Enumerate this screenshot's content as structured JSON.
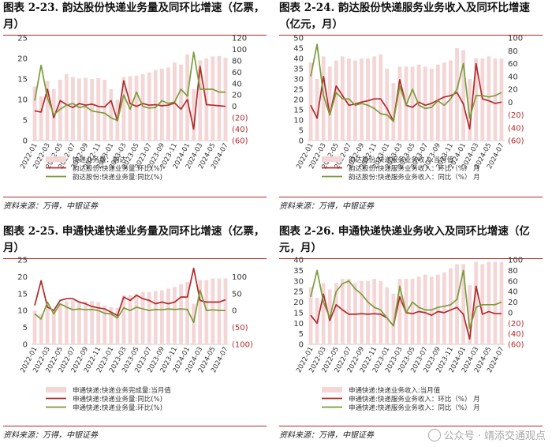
{
  "colors": {
    "bar": "#f4d6d6",
    "red": "#b22a2a",
    "green": "#7a9c3a",
    "rule": "#b22a2a"
  },
  "watermark": {
    "text": "公众号 · 靖添交通观点"
  },
  "chart_data": [
    {
      "id": "p1",
      "type": "bar+line",
      "title": "图表 2-23. 韵达股份快递业务量及同环比增速（亿票，月）",
      "source": "资料来源：万得，中银证券",
      "categories": [
        "2022-01",
        "2022-02",
        "2022-03",
        "2022-04",
        "2022-05",
        "2022-06",
        "2022-07",
        "2022-08",
        "2022-09",
        "2022-10",
        "2022-11",
        "2022-12",
        "2023-01",
        "2023-02",
        "2023-03",
        "2023-04",
        "2023-05",
        "2023-06",
        "2023-07",
        "2023-08",
        "2023-09",
        "2023-10",
        "2023-11",
        "2023-12",
        "2024-01",
        "2024-02",
        "2024-03",
        "2024-04",
        "2024-05",
        "2024-06",
        "2024-07"
      ],
      "xtick_labels": [
        "2022-01",
        "2022-03",
        "2022-05",
        "2022-07",
        "2022-09",
        "2022-11",
        "2023-01",
        "2023-03",
        "2023-05",
        "2023-07",
        "2023-09",
        "2023-11",
        "2024-01",
        "2024-03",
        "2024-05",
        "2024-07"
      ],
      "left_axis": {
        "min": 0,
        "max": 25,
        "ticks": [
          "0",
          "5",
          "10",
          "15",
          "20",
          "25"
        ]
      },
      "right_axis": {
        "min": -60,
        "max": 120,
        "ticks": [
          "(60)",
          "(40)",
          "(20)",
          "0",
          "20",
          "40",
          "60",
          "80",
          "100",
          "120"
        ]
      },
      "bars": {
        "name": "快递业务量：韵达",
        "values": [
          13.2,
          10.8,
          14.5,
          12.5,
          14.8,
          16.2,
          15.5,
          15.1,
          15.3,
          15.0,
          15.2,
          14.8,
          12.5,
          10.0,
          15.5,
          15.7,
          15.8,
          16.2,
          16.6,
          17.2,
          17.5,
          17.8,
          19.0,
          18.5,
          21.0,
          12.5,
          19.5,
          20.0,
          20.5,
          20.6,
          20.2
        ]
      },
      "lines": [
        {
          "name": "韵达股份:快递业务量:环比(%)",
          "color": "red",
          "values": [
            -8,
            -10,
            30,
            -20,
            10,
            3,
            -2,
            5,
            2,
            4,
            0,
            -1,
            10,
            -25,
            45,
            5,
            0,
            5,
            2,
            3,
            1,
            2,
            6,
            -5,
            12,
            -40,
            70,
            3,
            2,
            1,
            0
          ]
        },
        {
          "name": "韵达股份:快递业务量:同比(%)",
          "color": "green",
          "values": [
            10,
            72,
            15,
            -15,
            -5,
            2,
            5,
            -2,
            0,
            -8,
            -10,
            -12,
            -20,
            -25,
            20,
            -5,
            25,
            0,
            -3,
            -2,
            10,
            5,
            8,
            30,
            18,
            95,
            30,
            30,
            30,
            25,
            25
          ]
        }
      ]
    },
    {
      "id": "p2",
      "type": "bar+line",
      "title": "图表 2-24. 韵达股份快递服务业务收入及同环比增速（亿元，月）",
      "source": "资料来源：万得，中银证券",
      "categories": [
        "2022-01",
        "2022-02",
        "2022-03",
        "2022-04",
        "2022-05",
        "2022-06",
        "2022-07",
        "2022-08",
        "2022-09",
        "2022-10",
        "2022-11",
        "2022-12",
        "2023-01",
        "2023-02",
        "2023-03",
        "2023-04",
        "2023-05",
        "2023-06",
        "2023-07",
        "2023-08",
        "2023-09",
        "2023-10",
        "2023-11",
        "2023-12",
        "2024-01",
        "2024-02",
        "2024-03",
        "2024-04",
        "2024-05",
        "2024-06",
        "2024-07"
      ],
      "xtick_labels": [
        "2022-01",
        "2022-03",
        "2022-05",
        "2022-07",
        "2022-09",
        "2022-11",
        "2023-01",
        "2023-03",
        "2023-05",
        "2023-07",
        "2023-09",
        "2023-11",
        "2024-01",
        "2024-03",
        "2024-05",
        "2024-07"
      ],
      "left_axis": {
        "min": 0,
        "max": 50,
        "ticks": [
          "0",
          "5",
          "10",
          "15",
          "20",
          "25",
          "30",
          "35",
          "40",
          "45",
          "50"
        ]
      },
      "right_axis": {
        "min": -60,
        "max": 100,
        "ticks": [
          "(60)",
          "(40)",
          "(20)",
          "0",
          "20",
          "40",
          "60",
          "80",
          "100"
        ]
      },
      "bars": {
        "name": "韵达股份:快递服务业务收入:当月值",
        "values": [
          38,
          30,
          41,
          36,
          39,
          41,
          40,
          39,
          40,
          40,
          41,
          42,
          35,
          28,
          36,
          36,
          36,
          37,
          36,
          35,
          37,
          38,
          39,
          45,
          44,
          30,
          40,
          40,
          41,
          40,
          40
        ]
      },
      "lines": [
        {
          "name": "韵达股份:快递服务业务收入：环比（%）  月",
          "color": "red",
          "values": [
            -5,
            -25,
            40,
            -20,
            25,
            10,
            -5,
            -3,
            0,
            2,
            5,
            5,
            -10,
            -30,
            35,
            -5,
            -8,
            0,
            -5,
            -2,
            3,
            8,
            10,
            15,
            -3,
            -42,
            60,
            5,
            2,
            -2,
            0
          ]
        },
        {
          "name": "韵达股份:快递服务业务收入：同比（%）  月",
          "color": "green",
          "values": [
            40,
            90,
            10,
            -20,
            15,
            5,
            5,
            -5,
            -2,
            -5,
            -10,
            -18,
            -20,
            -30,
            25,
            -5,
            20,
            -5,
            -10,
            -8,
            2,
            -5,
            5,
            20,
            60,
            -25,
            10,
            10,
            8,
            10,
            15
          ]
        }
      ]
    },
    {
      "id": "p3",
      "type": "bar+line",
      "title": "图表 2-25. 申通快递快递业务量及同环比增速（亿票，月）",
      "source": "资料来源：万得，中银证券",
      "categories": [
        "2022-01",
        "2022-02",
        "2022-03",
        "2022-04",
        "2022-05",
        "2022-06",
        "2022-07",
        "2022-08",
        "2022-09",
        "2022-10",
        "2022-11",
        "2022-12",
        "2023-01",
        "2023-02",
        "2023-03",
        "2023-04",
        "2023-05",
        "2023-06",
        "2023-07",
        "2023-08",
        "2023-09",
        "2023-10",
        "2023-11",
        "2023-12",
        "2024-01",
        "2024-02",
        "2024-03",
        "2024-04",
        "2024-05",
        "2024-06",
        "2024-07"
      ],
      "xtick_labels": [
        "2022-01",
        "2022-03",
        "2022-05",
        "2022-07",
        "2022-09",
        "2022-11",
        "2023-01",
        "2023-03",
        "2023-05",
        "2023-07",
        "2023-09",
        "2023-11",
        "2024-01",
        "2024-03",
        "2024-05",
        "2024-07"
      ],
      "left_axis": {
        "min": 0,
        "max": 25,
        "ticks": [
          "0",
          "5",
          "10",
          "15",
          "20",
          "25"
        ]
      },
      "right_axis": {
        "min": -100,
        "max": 150,
        "ticks": [
          "(100)",
          "(50)",
          "0",
          "50",
          "100"
        ]
      },
      "bars": {
        "name": "申通快递:快递业务完成量:当月值",
        "values": [
          10,
          9,
          11.5,
          10,
          11.8,
          12.8,
          13,
          12.5,
          12.7,
          12.8,
          12.5,
          11.5,
          11,
          10.8,
          14.5,
          14.5,
          15,
          15.5,
          15.5,
          15.8,
          16,
          16.5,
          17,
          17.8,
          18.5,
          12,
          19,
          19,
          19.5,
          19.5,
          19.5
        ]
      },
      "lines": [
        {
          "name": "申通快递:快递业务量:同比(%)",
          "color": "red",
          "values": [
            15,
            88,
            10,
            0,
            30,
            35,
            35,
            25,
            20,
            12,
            8,
            5,
            -5,
            -15,
            40,
            30,
            45,
            35,
            30,
            20,
            25,
            20,
            25,
            40,
            40,
            125,
            30,
            25,
            25,
            25,
            32
          ]
        },
        {
          "name": "申通快递:快递业务量:环比(%)",
          "color": "green",
          "values": [
            -10,
            -25,
            25,
            -10,
            20,
            10,
            2,
            5,
            2,
            3,
            0,
            -8,
            -10,
            -22,
            8,
            0,
            10,
            5,
            0,
            3,
            2,
            5,
            3,
            5,
            3,
            -35,
            60,
            0,
            2,
            0,
            0
          ]
        }
      ]
    },
    {
      "id": "p4",
      "type": "bar+line",
      "title": "图表 2-26. 申通快递快递业务收入及同环比增速（亿元，月）",
      "source": "资料来源：万得，中银证券",
      "categories": [
        "2022-01",
        "2022-02",
        "2022-03",
        "2022-04",
        "2022-05",
        "2022-06",
        "2022-07",
        "2022-08",
        "2022-09",
        "2022-10",
        "2022-11",
        "2022-12",
        "2023-01",
        "2023-02",
        "2023-03",
        "2023-04",
        "2023-05",
        "2023-06",
        "2023-07",
        "2023-08",
        "2023-09",
        "2023-10",
        "2023-11",
        "2023-12",
        "2024-01",
        "2024-02",
        "2024-03",
        "2024-04",
        "2024-05",
        "2024-06",
        "2024-07"
      ],
      "xtick_labels": [
        "2022-01",
        "2022-03",
        "2022-05",
        "2022-07",
        "2022-09",
        "2022-11",
        "2023-01",
        "2023-03",
        "2023-05",
        "2023-07",
        "2023-09",
        "2023-11",
        "2024-01",
        "2024-03",
        "2024-05",
        "2024-07"
      ],
      "left_axis": {
        "min": 0,
        "max": 40,
        "ticks": [
          "0",
          "5",
          "10",
          "15",
          "20",
          "25",
          "30",
          "35",
          "40"
        ]
      },
      "right_axis": {
        "min": -60,
        "max": 100,
        "ticks": [
          "(60)",
          "(40)",
          "(20)",
          "0",
          "20",
          "40",
          "60",
          "80",
          "100"
        ]
      },
      "bars": {
        "name": "申通快递:快递业务收入:当月值",
        "values": [
          27,
          22,
          29,
          26,
          29,
          31,
          31,
          29,
          30,
          30,
          31,
          30,
          27,
          24,
          31,
          31,
          31,
          32,
          33,
          32,
          33,
          34,
          36,
          38,
          38,
          28,
          39,
          38,
          39,
          39,
          39
        ]
      },
      "lines": [
        {
          "name": "申通快递:快递服务业务收入：环比（%）  月",
          "color": "red",
          "values": [
            -5,
            -20,
            35,
            -15,
            15,
            5,
            -3,
            -3,
            -2,
            -3,
            -2,
            -3,
            -10,
            -25,
            30,
            0,
            -2,
            2,
            0,
            -5,
            2,
            0,
            5,
            10,
            -3,
            -50,
            50,
            -3,
            2,
            -2,
            -2
          ]
        },
        {
          "name": "申通快递:快递服务业务收入：同比（%）  月",
          "color": "green",
          "values": [
            30,
            80,
            20,
            -10,
            40,
            55,
            60,
            45,
            35,
            20,
            10,
            5,
            -10,
            -25,
            50,
            0,
            20,
            10,
            5,
            5,
            10,
            12,
            15,
            25,
            80,
            -30,
            10,
            15,
            15,
            15,
            20
          ]
        }
      ]
    }
  ]
}
